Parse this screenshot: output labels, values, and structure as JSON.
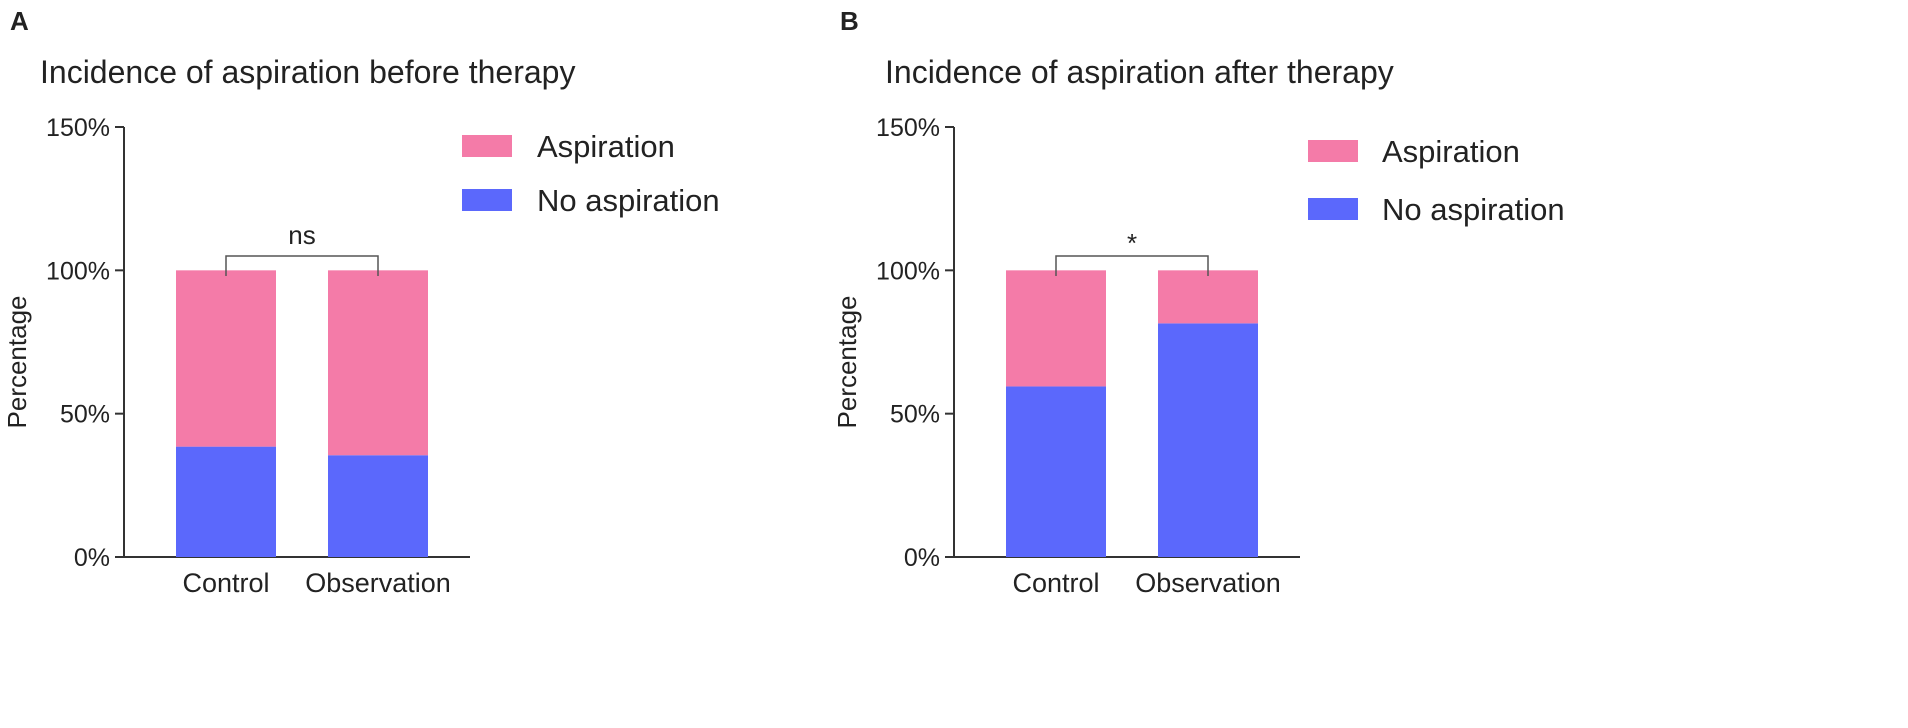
{
  "colors": {
    "aspiration": "#f47ba8",
    "no_aspiration": "#5b68fc",
    "axis": "#333333",
    "bracket": "#555555"
  },
  "chart_data": [
    {
      "panel": "A",
      "type": "bar",
      "stacked": true,
      "title": "Incidence of aspiration before therapy",
      "ylabel": "Percentage",
      "xlabel": "",
      "ylim": [
        0,
        150
      ],
      "yticks": [
        0,
        50,
        100,
        150
      ],
      "ytick_labels": [
        "0%",
        "50%",
        "100%",
        "150%"
      ],
      "categories": [
        "Control",
        "Observation"
      ],
      "series": [
        {
          "name": "No aspiration",
          "color_key": "no_aspiration",
          "values": [
            38.5,
            35.5
          ]
        },
        {
          "name": "Aspiration",
          "color_key": "aspiration",
          "values": [
            61.5,
            64.5
          ]
        }
      ],
      "legend": {
        "position": "top-right",
        "entries": [
          "Aspiration",
          "No aspiration"
        ]
      },
      "significance": {
        "label": "ns",
        "between": [
          "Control",
          "Observation"
        ],
        "y": 105
      }
    },
    {
      "panel": "B",
      "type": "bar",
      "stacked": true,
      "title": "Incidence of aspiration after therapy",
      "ylabel": "Percentage",
      "xlabel": "",
      "ylim": [
        0,
        150
      ],
      "yticks": [
        0,
        50,
        100,
        150
      ],
      "ytick_labels": [
        "0%",
        "50%",
        "100%",
        "150%"
      ],
      "categories": [
        "Control",
        "Observation"
      ],
      "series": [
        {
          "name": "No aspiration",
          "color_key": "no_aspiration",
          "values": [
            59.5,
            81.5
          ]
        },
        {
          "name": "Aspiration",
          "color_key": "aspiration",
          "values": [
            40.5,
            18.5
          ]
        }
      ],
      "legend": {
        "position": "top-right",
        "entries": [
          "Aspiration",
          "No aspiration"
        ]
      },
      "significance": {
        "label": "*",
        "between": [
          "Control",
          "Observation"
        ],
        "y": 105
      }
    }
  ]
}
